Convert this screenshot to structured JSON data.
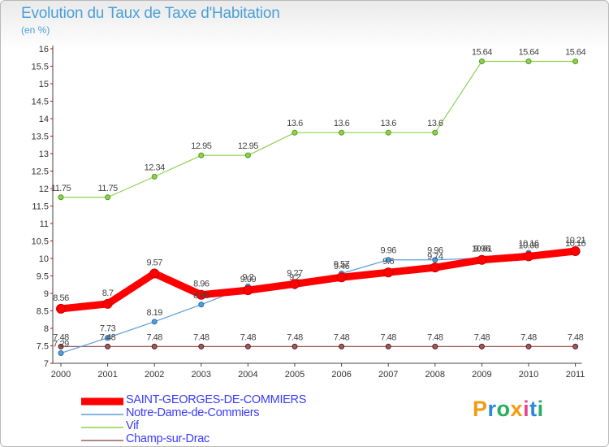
{
  "header": {
    "title": "Evolution du Taux de Taxe d'Habitation",
    "subtitle": "(en %)"
  },
  "chart_data": {
    "type": "line",
    "title": "Evolution du Taux de Taxe d'Habitation",
    "ylabel": "(en %)",
    "xlabel": "",
    "categories": [
      "2000",
      "2001",
      "2002",
      "2003",
      "2004",
      "2005",
      "2006",
      "2007",
      "2008",
      "2009",
      "2010",
      "2011"
    ],
    "ylim": [
      7,
      16
    ],
    "ytick_step": 0.5,
    "grid": false,
    "legend": "bottom-left",
    "series": [
      {
        "name": "SAINT-GEORGES-DE-COMMIERS",
        "color": "#ff0000",
        "values": [
          8.56,
          8.7,
          9.57,
          8.96,
          9.09,
          9.27,
          9.46,
          9.6,
          9.74,
          9.96,
          10.06,
          10.21
        ],
        "labels": [
          "8.56",
          "8.7",
          "9.57",
          "8.96",
          "9.09",
          "9.27",
          "9.46",
          "9.6",
          "9.74",
          "9.96",
          "10.06",
          "10.21"
        ]
      },
      {
        "name": "Notre-Dame-de-Commiers",
        "color": "#5b9bd5",
        "values": [
          7.29,
          7.73,
          8.19,
          8.68,
          9.2,
          9.2,
          9.57,
          9.96,
          9.96,
          10.01,
          10.16,
          10.16
        ],
        "labels": [
          "7.29",
          "7.73",
          "8.19",
          "8.68",
          "9.2",
          "9.2",
          "9.57",
          "9.96",
          "9.96",
          "10.01",
          "10.16",
          "10.16"
        ]
      },
      {
        "name": "Vif",
        "color": "#8fd14f",
        "values": [
          11.75,
          11.75,
          12.34,
          12.95,
          12.95,
          13.6,
          13.6,
          13.6,
          13.6,
          15.64,
          15.64,
          15.64
        ],
        "labels": [
          "11.75",
          "11.75",
          "12.34",
          "12.95",
          "12.95",
          "13.6",
          "13.6",
          "13.6",
          "13.6",
          "15.64",
          "15.64",
          "15.64"
        ]
      },
      {
        "name": "Champ-sur-Drac",
        "color": "#9e5b5b",
        "values": [
          7.48,
          7.48,
          7.48,
          7.48,
          7.48,
          7.48,
          7.48,
          7.48,
          7.48,
          7.48,
          7.48,
          7.48
        ],
        "labels": [
          "7.48",
          "7.48",
          "7.48",
          "7.48",
          "7.48",
          "7.48",
          "7.48",
          "7.48",
          "7.48",
          "7.48",
          "7.48",
          "7.48"
        ]
      }
    ]
  },
  "legend": {
    "items": [
      {
        "label": "SAINT-GEORGES-DE-COMMIERS"
      },
      {
        "label": "Notre-Dame-de-Commiers"
      },
      {
        "label": "Vif"
      },
      {
        "label": "Champ-sur-Drac"
      }
    ]
  },
  "logo": {
    "letters": [
      "P",
      "r",
      "o",
      "x",
      "i",
      "t",
      "i"
    ],
    "colors": [
      "#f39c12",
      "#2e86de",
      "#27ae60",
      "#f39c12",
      "#e84393",
      "#2e86de",
      "#27ae60"
    ]
  }
}
